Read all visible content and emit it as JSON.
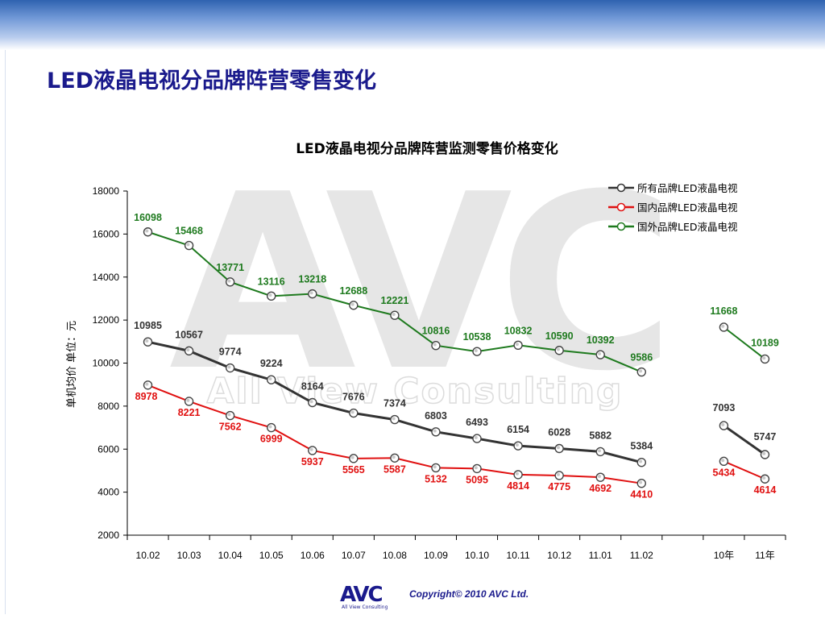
{
  "page_title": "LED液晶电视分品牌阵营零售变化",
  "footer": {
    "copyright": "Copyright© 2010 AVC Ltd.",
    "logo_text": "AVC",
    "logo_subtext": "All View Consulting"
  },
  "watermark": {
    "main": "AVC",
    "sub": "All View Consulting"
  },
  "colors": {
    "all_brands": "#333333",
    "domestic": "#e01010",
    "foreign": "#1e7a1e",
    "title": "#1a1a8c"
  },
  "chart_data": {
    "type": "line",
    "title": "LED液晶电视分品牌阵营监测零售价格变化",
    "ylabel": "单机均价 单位：元",
    "xlabel": "",
    "ylim": [
      2000,
      18000
    ],
    "yticks": [
      2000,
      4000,
      6000,
      8000,
      10000,
      12000,
      14000,
      16000,
      18000
    ],
    "legend_position": "top-right",
    "groups": [
      {
        "categories": [
          "10.02",
          "10.03",
          "10.04",
          "10.05",
          "10.06",
          "10.07",
          "10.08",
          "10.09",
          "10.10",
          "10.11",
          "10.12",
          "11.01",
          "11.02"
        ],
        "series": [
          {
            "name": "所有品牌LED液晶电视",
            "values": [
              10985,
              10567,
              9774,
              9224,
              8164,
              7676,
              7374,
              6803,
              6493,
              6154,
              6028,
              5882,
              5384
            ]
          },
          {
            "name": "国内品牌LED液晶电视",
            "values": [
              8978,
              8221,
              7562,
              6999,
              5937,
              5565,
              5587,
              5132,
              5095,
              4814,
              4775,
              4692,
              4410
            ]
          },
          {
            "name": "国外品牌LED液晶电视",
            "values": [
              16098,
              15468,
              13771,
              13116,
              13218,
              12688,
              12221,
              10816,
              10538,
              10832,
              10590,
              10392,
              9586
            ]
          }
        ]
      },
      {
        "categories": [
          "10年",
          "11年"
        ],
        "series": [
          {
            "name": "所有品牌LED液晶电视",
            "values": [
              7093,
              5747
            ]
          },
          {
            "name": "国内品牌LED液晶电视",
            "values": [
              5434,
              4614
            ]
          },
          {
            "name": "国外品牌LED液晶电视",
            "values": [
              11668,
              10189
            ]
          }
        ]
      }
    ]
  }
}
